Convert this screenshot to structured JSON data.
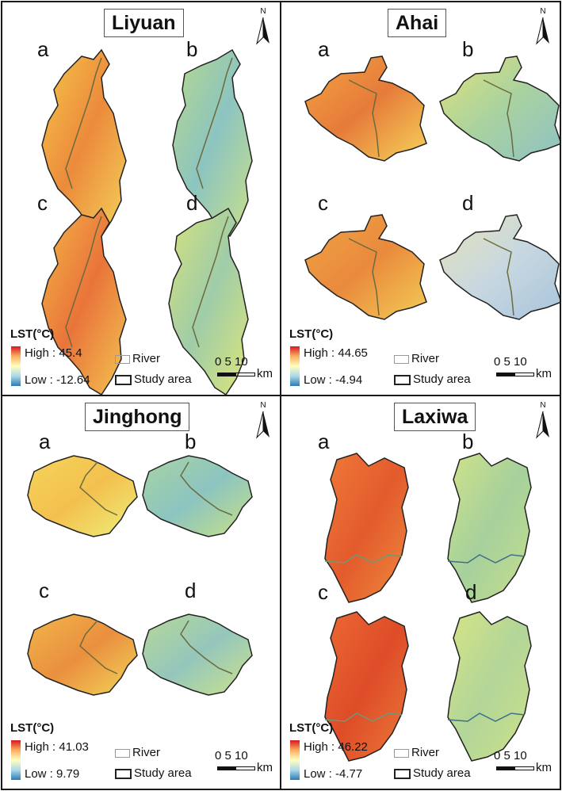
{
  "north_label": "N",
  "legend_labels": {
    "river": "River",
    "study_area": "Study area",
    "scale_numbers": "0 5 10",
    "scale_unit": "km"
  },
  "panels": [
    {
      "title": "Liyuan",
      "legend_title": "LST(°C)",
      "high": "High : 45.4",
      "low": "Low : -12.64",
      "maps": [
        {
          "label": "a",
          "scheme": "warm"
        },
        {
          "label": "b",
          "scheme": "cool"
        },
        {
          "label": "c",
          "scheme": "warm"
        },
        {
          "label": "d",
          "scheme": "mixed"
        }
      ]
    },
    {
      "title": "Ahai",
      "legend_title": "LST(°C)",
      "high": "High : 44.65",
      "low": "Low : -4.94",
      "maps": [
        {
          "label": "a",
          "scheme": "warm"
        },
        {
          "label": "b",
          "scheme": "cool"
        },
        {
          "label": "c",
          "scheme": "warm"
        },
        {
          "label": "d",
          "scheme": "pale"
        }
      ]
    },
    {
      "title": "Jinghong",
      "legend_title": "LST(°C)",
      "high": "High : 41.03",
      "low": "Low : 9.79",
      "maps": [
        {
          "label": "a",
          "scheme": "yellow"
        },
        {
          "label": "b",
          "scheme": "cool"
        },
        {
          "label": "c",
          "scheme": "warm"
        },
        {
          "label": "d",
          "scheme": "cool"
        }
      ]
    },
    {
      "title": "Laxiwa",
      "legend_title": "LST(°C)",
      "high": "High : 46.22",
      "low": "Low : -4.77",
      "maps": [
        {
          "label": "a",
          "scheme": "hot"
        },
        {
          "label": "b",
          "scheme": "cool"
        },
        {
          "label": "c",
          "scheme": "hot"
        },
        {
          "label": "d",
          "scheme": "cool"
        }
      ]
    }
  ],
  "colors": {
    "border": "#1a1a1a",
    "river": "#6b6b40",
    "outline": "#222222",
    "ramp_high": "#d7191c",
    "ramp_mid": "#ffffbf",
    "ramp_low": "#2c7bb6"
  }
}
